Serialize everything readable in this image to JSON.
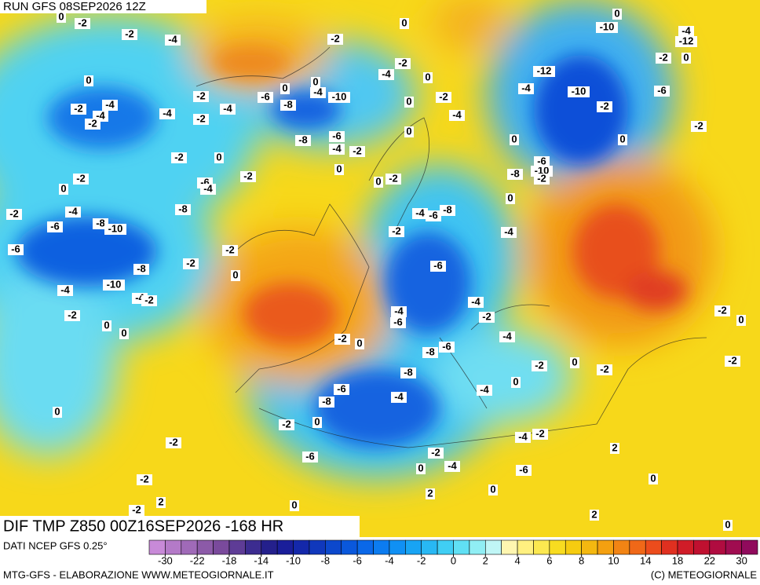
{
  "header": {
    "run": "RUN GFS 08SEP2026 12Z"
  },
  "map": {
    "title": "DIF TMP Z850 00Z16SEP2026 -168 HR",
    "contour_labels": [
      -2,
      -2,
      -4,
      0,
      0,
      -2,
      -4,
      -4,
      -2,
      -4,
      -2,
      -2,
      -4,
      -6,
      -8,
      0,
      0,
      -4,
      -10,
      -2,
      0,
      -4,
      -2,
      0,
      0,
      -2,
      -4,
      0,
      -6,
      -4,
      -2,
      -8,
      0,
      0,
      -2,
      0,
      -2,
      -2,
      0,
      -2,
      -6,
      -4,
      -8,
      -2,
      -4,
      -6,
      -8,
      -10,
      -6,
      -2,
      -2,
      0,
      -8,
      -10,
      -4,
      -4,
      -2,
      -2,
      0,
      0,
      -2,
      0,
      -2,
      -4,
      -6,
      -8,
      -6,
      -4,
      -6,
      -8,
      -6,
      -8,
      -6,
      -8,
      -4,
      0,
      -2,
      -6,
      -2,
      -4,
      0,
      2,
      0,
      -6,
      -4,
      -2,
      -4,
      -4,
      0,
      -2,
      0,
      -2,
      -4,
      -2,
      2,
      0,
      2,
      0,
      0,
      2,
      -2,
      -2,
      0,
      -2,
      0,
      -4,
      -8,
      -10,
      -6,
      -2,
      0,
      -4,
      -12,
      -10,
      -2,
      0,
      -2,
      -6,
      -2,
      0,
      -4,
      -12,
      -10,
      0,
      -2,
      0,
      -2
    ]
  },
  "legend": {
    "source": "DATI NCEP GFS 0.25°",
    "colors": [
      "#c88ad8",
      "#b47ac8",
      "#a06ab8",
      "#8c5aa8",
      "#7a4a9c",
      "#5e3c96",
      "#3c2c90",
      "#24208c",
      "#1a1e9a",
      "#1428aa",
      "#1038bc",
      "#0c48cc",
      "#0a58dc",
      "#0a68e8",
      "#0c7cf0",
      "#1090f4",
      "#18a4f4",
      "#28b8f4",
      "#40cef4",
      "#60e0f4",
      "#90eef4",
      "#c0f6f6",
      "#fff6b0",
      "#fff080",
      "#fce850",
      "#f8dc20",
      "#f6cc10",
      "#f4b810",
      "#f4a010",
      "#f28414",
      "#f06818",
      "#ec4c1c",
      "#e03020",
      "#d01c28",
      "#c01030",
      "#b00c40",
      "#a00c50",
      "#900a5c"
    ],
    "ticks": [
      -30,
      -22,
      -18,
      -14,
      -10,
      -8,
      -6,
      -4,
      -2,
      0,
      2,
      4,
      6,
      8,
      10,
      14,
      18,
      22,
      30
    ]
  },
  "footer": {
    "left": "MTG-GFS - ELABORAZIONE WWW.METEOGIORNALE.IT",
    "right": "(C) METEOGIORNALE"
  }
}
